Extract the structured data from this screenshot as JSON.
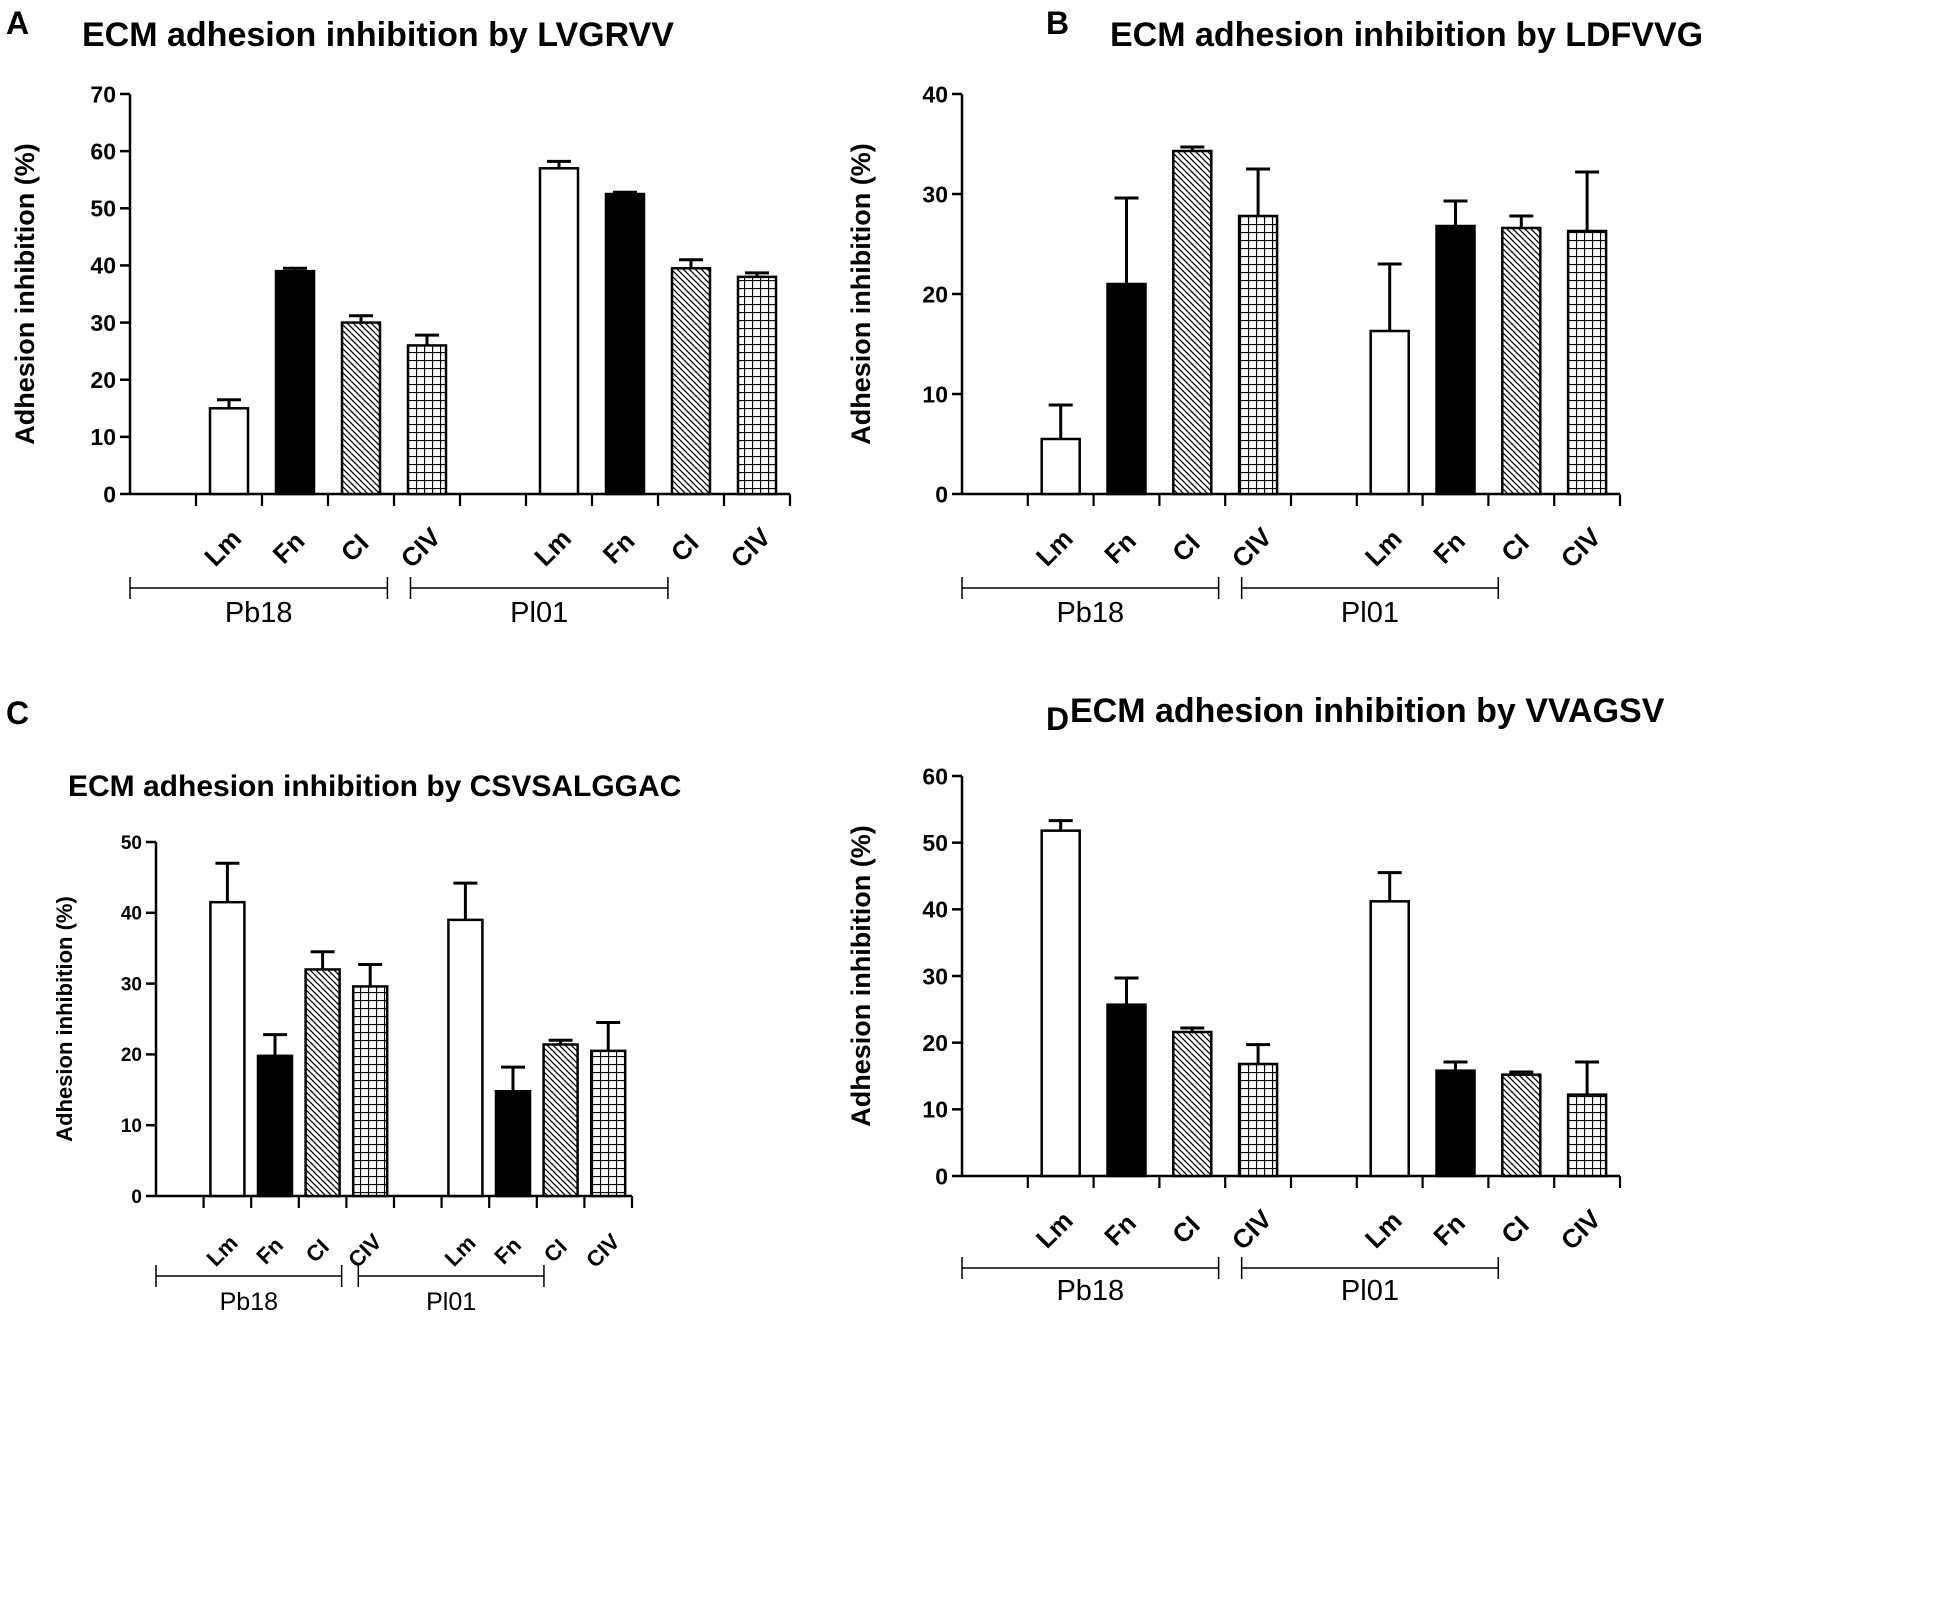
{
  "chart_data": [
    {
      "panel": "A",
      "type": "bar",
      "title": "ECM adhesion inhibition by LVGRVV",
      "xlabel": "",
      "ylabel": "Adhesion inhibition (%)",
      "ylim": [
        0,
        70
      ],
      "yticks": [
        0,
        10,
        20,
        30,
        40,
        50,
        60,
        70
      ],
      "groups": [
        "Pb18",
        "Pl01"
      ],
      "categories": [
        "Lm",
        "Fn",
        "CI",
        "CIV"
      ],
      "series": [
        {
          "name": "Pb18",
          "values": [
            15,
            39,
            30,
            26
          ],
          "errors": [
            1.5,
            0.5,
            1.2,
            1.8
          ]
        },
        {
          "name": "Pl01",
          "values": [
            57,
            52.5,
            39.5,
            38
          ],
          "errors": [
            1.2,
            0.3,
            1.5,
            0.7
          ]
        }
      ],
      "legend": "none",
      "grid": false
    },
    {
      "panel": "B",
      "type": "bar",
      "title": "ECM adhesion inhibition by LDFVVG",
      "xlabel": "",
      "ylabel": "Adhesion inhibition (%)",
      "ylim": [
        0,
        40
      ],
      "yticks": [
        0,
        10,
        20,
        30,
        40
      ],
      "groups": [
        "Pb18",
        "Pl01"
      ],
      "categories": [
        "Lm",
        "Fn",
        "CI",
        "CIV"
      ],
      "series": [
        {
          "name": "Pb18",
          "values": [
            5.5,
            21,
            34.3,
            27.8
          ],
          "errors": [
            3.4,
            8.6,
            0.4,
            4.7
          ]
        },
        {
          "name": "Pl01",
          "values": [
            16.3,
            26.8,
            26.6,
            26.3
          ],
          "errors": [
            6.7,
            2.5,
            1.2,
            5.9
          ]
        }
      ],
      "legend": "none",
      "grid": false
    },
    {
      "panel": "C",
      "type": "bar",
      "title": "ECM adhesion inhibition by CSVSALGGAC",
      "xlabel": "",
      "ylabel": "Adhesion inhibition (%)",
      "ylim": [
        0,
        50
      ],
      "yticks": [
        0,
        10,
        20,
        30,
        40,
        50
      ],
      "groups": [
        "Pb18",
        "Pl01"
      ],
      "categories": [
        "Lm",
        "Fn",
        "CI",
        "CIV"
      ],
      "series": [
        {
          "name": "Pb18",
          "values": [
            41.5,
            19.8,
            32,
            29.6
          ],
          "errors": [
            5.5,
            3,
            2.5,
            3.1
          ]
        },
        {
          "name": "Pl01",
          "values": [
            39,
            14.8,
            21.4,
            20.5
          ],
          "errors": [
            5.2,
            3.4,
            0.6,
            4
          ]
        }
      ],
      "legend": "none",
      "grid": false
    },
    {
      "panel": "D",
      "type": "bar",
      "title": "ECM adhesion inhibition by VVAGSV",
      "xlabel": "",
      "ylabel": "Adhesion inhibition (%)",
      "ylim": [
        0,
        60
      ],
      "yticks": [
        0,
        10,
        20,
        30,
        40,
        50,
        60
      ],
      "groups": [
        "Pb18",
        "Pl01"
      ],
      "categories": [
        "Lm",
        "Fn",
        "CI",
        "CIV"
      ],
      "series": [
        {
          "name": "Pb18",
          "values": [
            51.8,
            25.7,
            21.6,
            16.8
          ],
          "errors": [
            1.5,
            4,
            0.6,
            2.9
          ]
        },
        {
          "name": "Pl01",
          "values": [
            41.2,
            15.8,
            15.2,
            12.2
          ],
          "errors": [
            4.3,
            1.3,
            0.4,
            4.9
          ]
        }
      ],
      "legend": "none",
      "grid": false
    }
  ],
  "colors": {
    "outline": "#000000",
    "lm_fill": "#ffffff",
    "fn_fill": "#000000"
  },
  "fill_styles": {
    "Lm": "open",
    "Fn": "solid",
    "CI": "diagonal-hatch",
    "CIV": "crosshatch"
  }
}
